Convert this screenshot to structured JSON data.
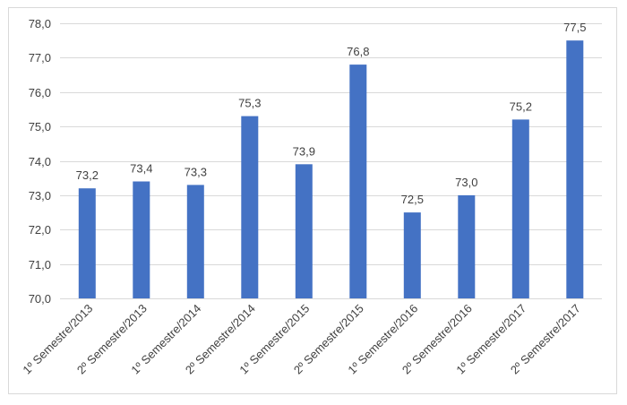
{
  "chart_data": {
    "type": "bar",
    "title": "",
    "xlabel": "",
    "ylabel": "",
    "categories": [
      "1º Semestre/2013",
      "2º Semestre/2013",
      "1º Semestre/2014",
      "2º Semestre/2014",
      "1º Semestre/2015",
      "2º Semestre/2015",
      "1º Semestre/2016",
      "2º Semestre/2016",
      "1º Semestre/2017",
      "2º Semestre/2017"
    ],
    "values": [
      73.2,
      73.4,
      73.3,
      75.3,
      73.9,
      76.8,
      72.5,
      73.0,
      75.2,
      77.5
    ],
    "value_labels": [
      "73,2",
      "73,4",
      "73,3",
      "75,3",
      "73,9",
      "76,8",
      "72,5",
      "73,0",
      "75,2",
      "77,5"
    ],
    "ylim": [
      70,
      78
    ],
    "yticks": [
      70,
      71,
      72,
      73,
      74,
      75,
      76,
      77,
      78
    ],
    "ytick_labels": [
      "70,0",
      "71,0",
      "72,0",
      "73,0",
      "74,0",
      "75,0",
      "76,0",
      "77,0",
      "78,0"
    ],
    "grid": true,
    "legend": "none",
    "colors": {
      "bar": "#4472c4",
      "grid": "#d9d9d9",
      "text": "#404040"
    }
  }
}
